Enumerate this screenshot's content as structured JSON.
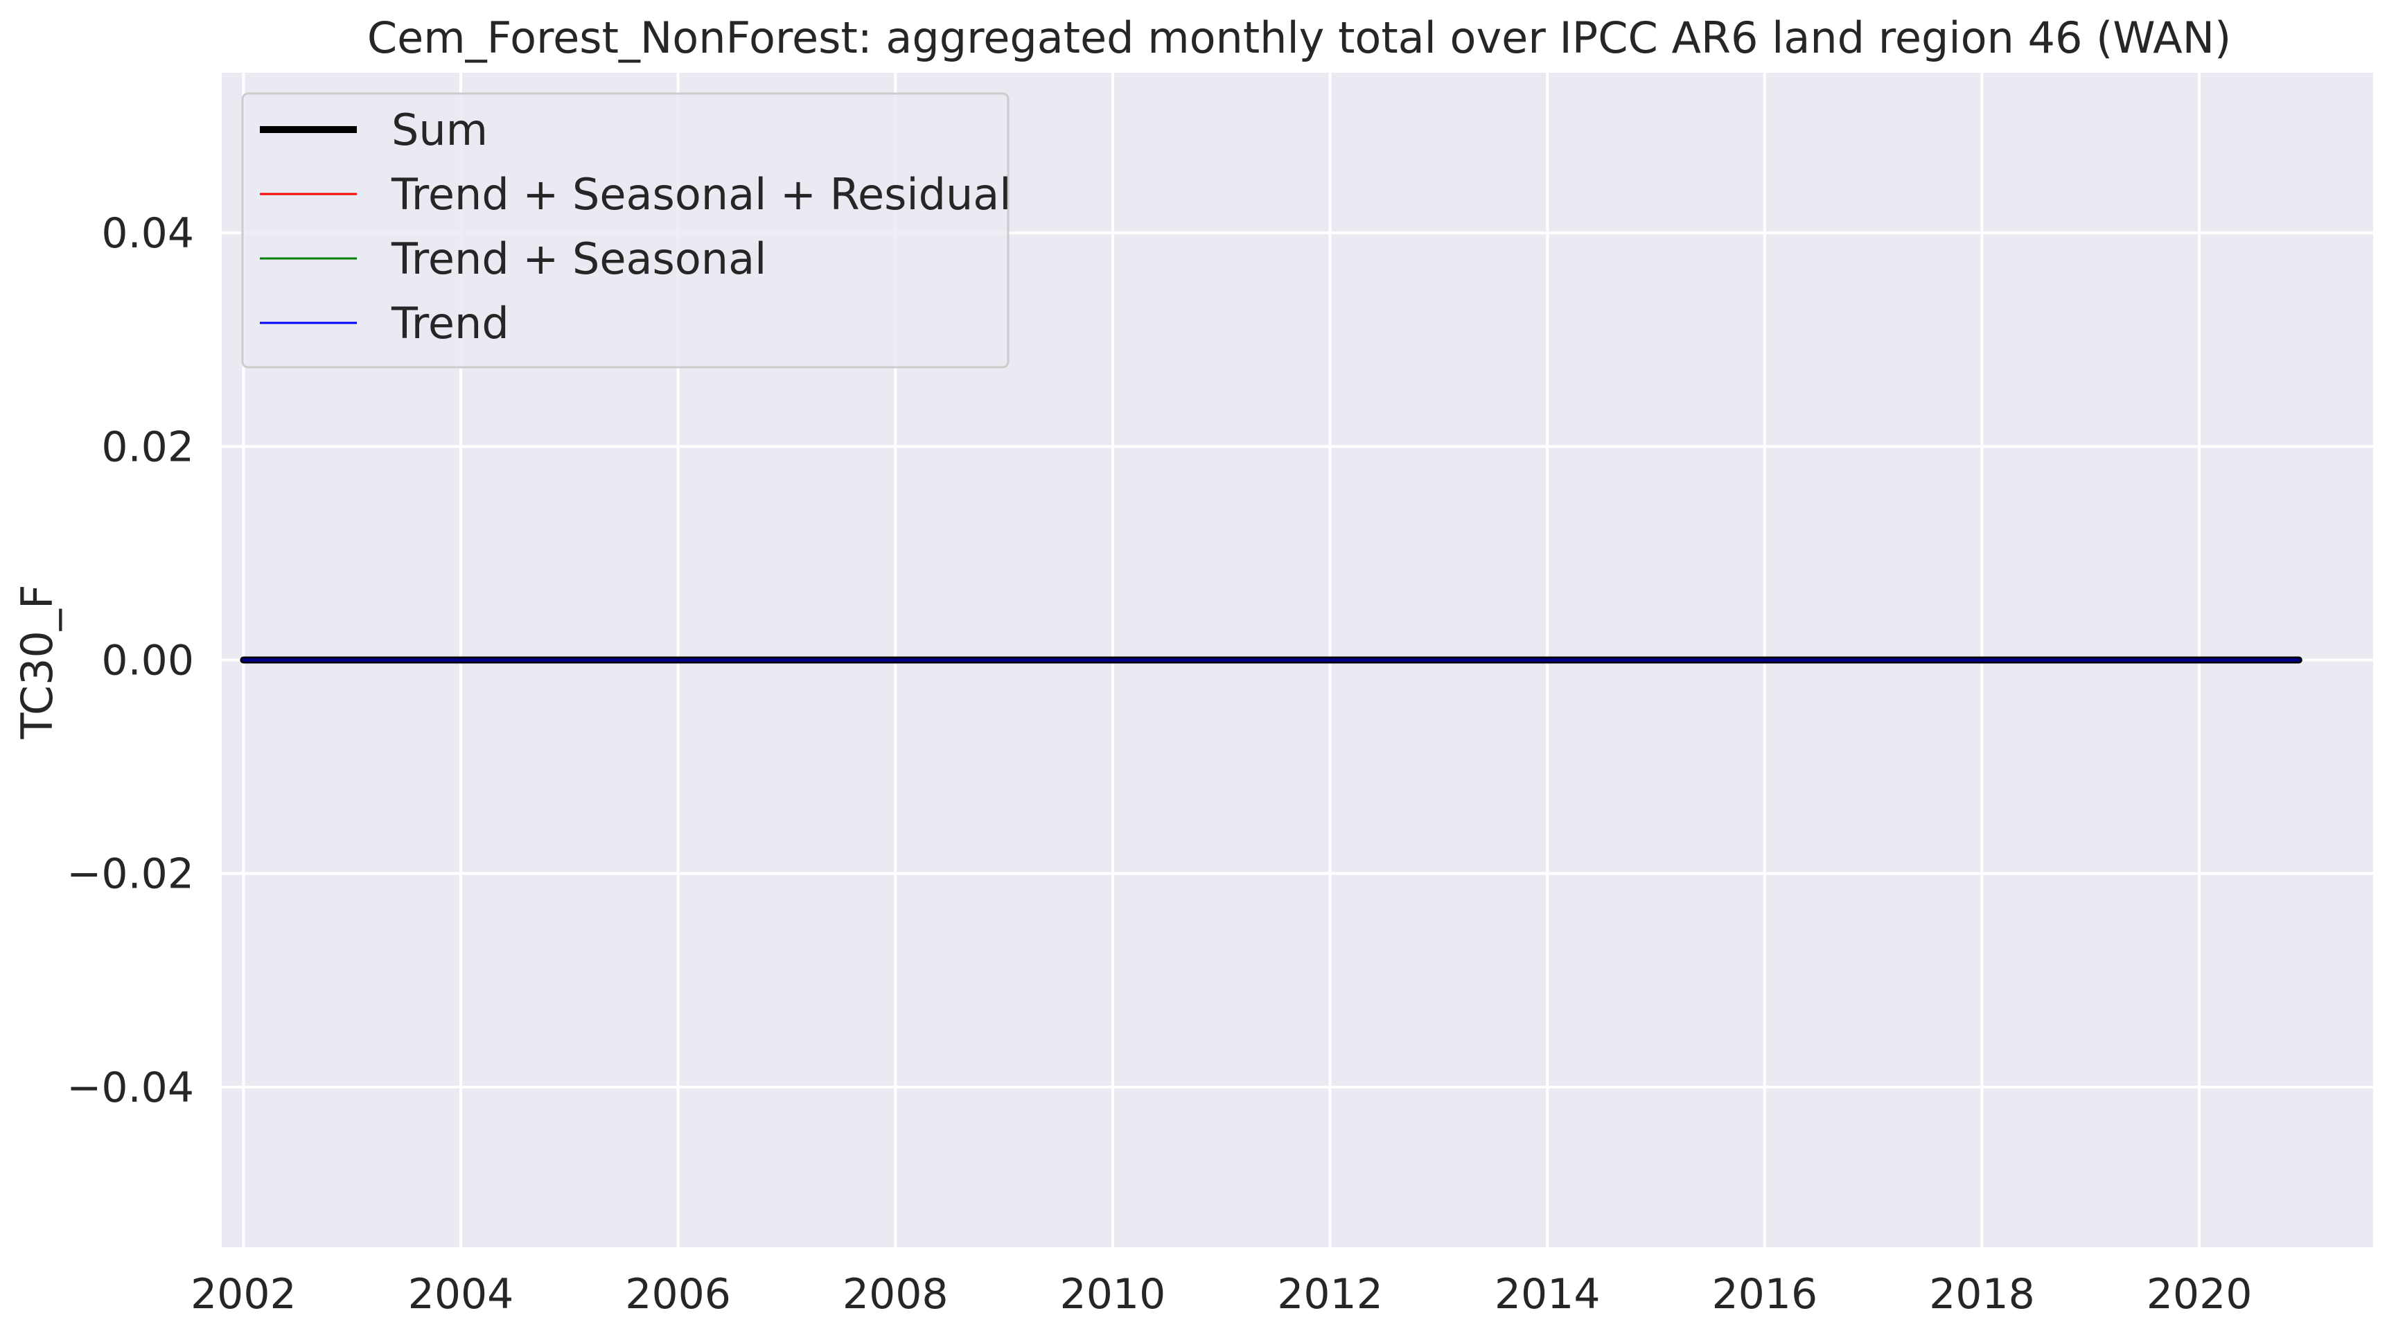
{
  "chart_data": {
    "type": "line",
    "title": "Cem_Forest_NonForest: aggregated monthly total over IPCC AR6 land region 46 (WAN)",
    "xlabel": "",
    "ylabel": "TC30_F",
    "x_range": [
      "2002-01",
      "2020-12"
    ],
    "xlim": [
      2001.8,
      2021.6
    ],
    "ylim": [
      -0.055,
      0.055
    ],
    "x_ticks": [
      2002,
      2004,
      2006,
      2008,
      2010,
      2012,
      2014,
      2016,
      2018,
      2020
    ],
    "x_tick_labels": [
      "2002",
      "2004",
      "2006",
      "2008",
      "2010",
      "2012",
      "2014",
      "2016",
      "2018",
      "2020"
    ],
    "y_ticks": [
      0.04,
      0.02,
      0.0,
      -0.02,
      -0.04
    ],
    "y_tick_labels": [
      "0.04",
      "0.02",
      "0.00",
      "−0.02",
      "−0.04"
    ],
    "grid": true,
    "background": "#eaeaf2",
    "legend_position": "upper-left",
    "series": [
      {
        "name": "Sum",
        "color": "#000000",
        "x": [
          "2002-01",
          "2020-12"
        ],
        "values": [
          0.0,
          0.0
        ],
        "description": "constant 0 for every month"
      },
      {
        "name": "Trend + Seasonal + Residual",
        "color": "#ff0000",
        "x": [
          "2002-01",
          "2020-12"
        ],
        "values": [
          0.0,
          0.0
        ],
        "description": "constant 0 for every month"
      },
      {
        "name": "Trend + Seasonal",
        "color": "#008000",
        "x": [
          "2002-01",
          "2020-12"
        ],
        "values": [
          0.0,
          0.0
        ],
        "description": "constant 0 for every month"
      },
      {
        "name": "Trend",
        "color": "#0000ff",
        "x": [
          "2002-01",
          "2020-12"
        ],
        "values": [
          0.0,
          0.0
        ],
        "description": "constant 0 for every month"
      }
    ]
  }
}
